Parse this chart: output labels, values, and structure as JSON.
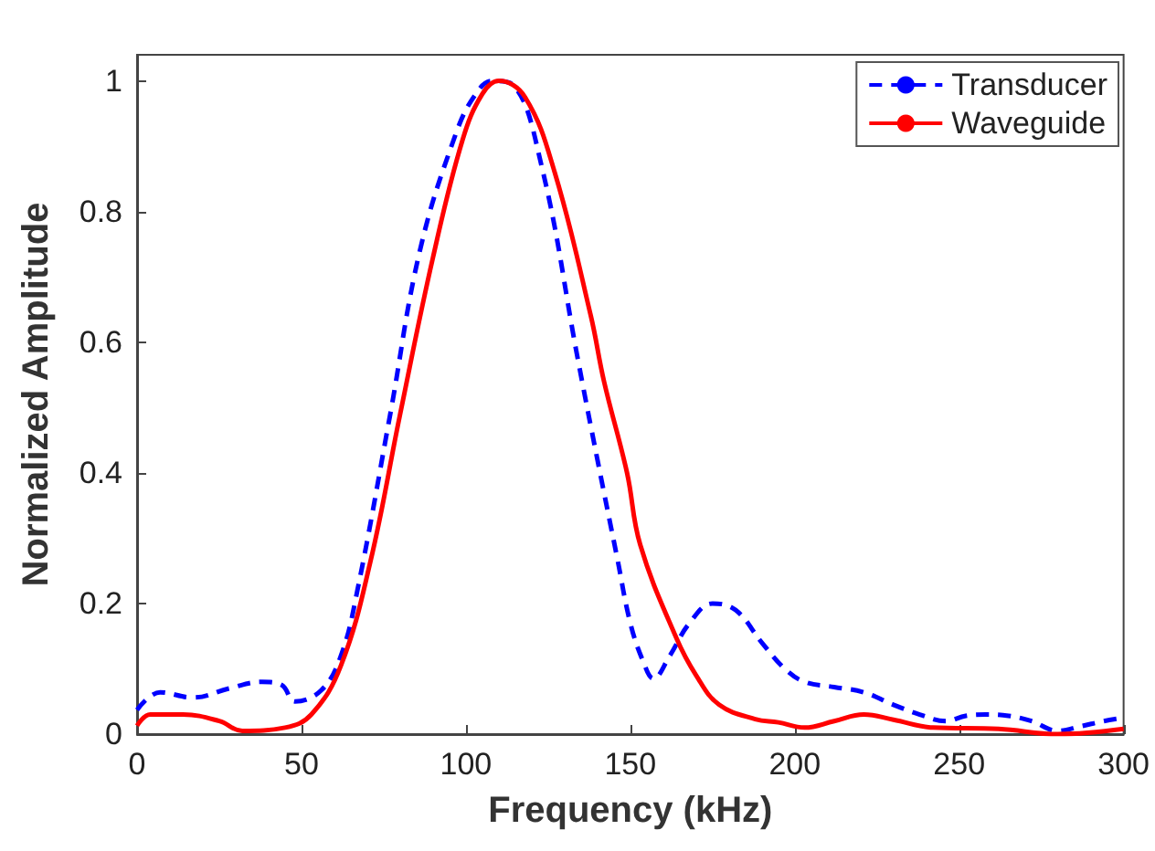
{
  "chart_data": {
    "type": "line",
    "xlabel": "Frequency (kHz)",
    "ylabel": "Normalized Amplitude",
    "xlim": [
      0,
      300
    ],
    "xticks": [
      0,
      50,
      100,
      150,
      200,
      250,
      300
    ],
    "ylim": [
      0,
      1.04
    ],
    "yticks": [
      0,
      0.2,
      0.4,
      0.6,
      0.8,
      1
    ],
    "grid": false,
    "legend": "top right",
    "marker": "none",
    "series": [
      {
        "name": "Transducer",
        "color": "#0000ff",
        "line_style": "dashed",
        "x": [
          0,
          7,
          17,
          28,
          38,
          44,
          48,
          56,
          62,
          67,
          77,
          86,
          97,
          103,
          108,
          114,
          123,
          134,
          140,
          146,
          150,
          154,
          157,
          162,
          168,
          175,
          182,
          190,
          197,
          203,
          212,
          221,
          230,
          238,
          246,
          252,
          258,
          265,
          272,
          280,
          287,
          294,
          300
        ],
        "values": [
          0.037,
          0.064,
          0.056,
          0.07,
          0.08,
          0.075,
          0.05,
          0.067,
          0.12,
          0.22,
          0.49,
          0.74,
          0.92,
          0.98,
          1.0,
          0.995,
          0.87,
          0.575,
          0.42,
          0.27,
          0.17,
          0.11,
          0.085,
          0.12,
          0.17,
          0.2,
          0.19,
          0.14,
          0.1,
          0.08,
          0.072,
          0.064,
          0.045,
          0.03,
          0.02,
          0.028,
          0.03,
          0.028,
          0.02,
          0.005,
          0.012,
          0.02,
          0.025
        ]
      },
      {
        "name": "Waveguide",
        "color": "#ff0000",
        "line_style": "solid",
        "x": [
          0,
          4,
          14,
          25,
          32,
          45,
          53,
          62,
          71,
          80,
          90,
          99,
          105,
          110,
          118,
          127,
          138,
          142,
          149,
          153,
          164,
          170,
          177,
          188,
          195,
          203,
          212,
          221,
          230,
          242,
          262,
          280,
          300
        ],
        "values": [
          0.013,
          0.03,
          0.03,
          0.02,
          0.005,
          0.01,
          0.03,
          0.105,
          0.265,
          0.49,
          0.73,
          0.91,
          0.98,
          1.0,
          0.975,
          0.86,
          0.64,
          0.54,
          0.4,
          0.29,
          0.147,
          0.09,
          0.045,
          0.023,
          0.018,
          0.01,
          0.02,
          0.03,
          0.022,
          0.01,
          0.008,
          0.0,
          0.008
        ]
      }
    ]
  }
}
